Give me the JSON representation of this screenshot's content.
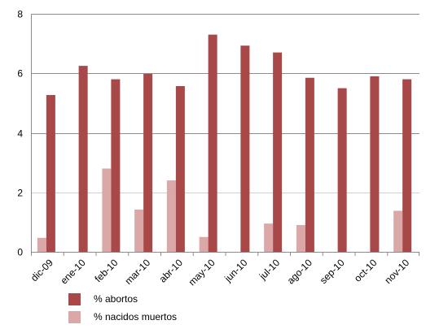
{
  "chart_data": {
    "type": "bar",
    "categories": [
      "dic-09",
      "ene-10",
      "feb-10",
      "mar-10",
      "abr-10",
      "may-10",
      "jun-10",
      "jul-10",
      "ago-10",
      "sep-10",
      "oct-10",
      "nov-10"
    ],
    "series": [
      {
        "name": "% abortos",
        "color": "#a84848",
        "values": [
          5.27,
          6.25,
          5.8,
          5.98,
          5.57,
          7.3,
          6.93,
          6.7,
          5.85,
          5.5,
          5.9,
          5.8
        ]
      },
      {
        "name": "% nacidos muertos",
        "color": "#dba8a8",
        "values": [
          0.47,
          0,
          2.8,
          1.42,
          2.4,
          0.5,
          0,
          0.95,
          0.9,
          0,
          0,
          1.38
        ]
      }
    ],
    "title": "",
    "xlabel": "",
    "ylabel": "",
    "ylim": [
      0,
      8
    ],
    "yticks": [
      "0",
      "2",
      "4",
      "6",
      "8"
    ],
    "grid": true,
    "legend_position": "bottom-left"
  }
}
